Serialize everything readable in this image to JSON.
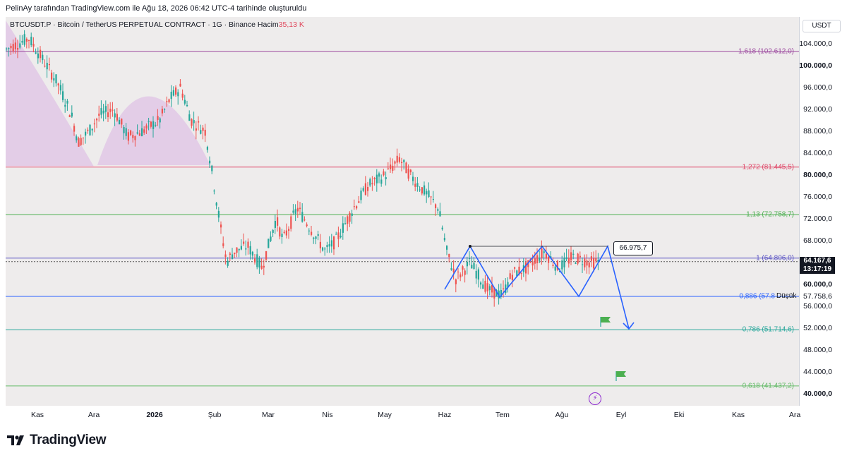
{
  "header": {
    "attribution": "PelinAy tarafından TradingView.com ile Ağu 18, 2026 06:42 UTC-4 tarihinde oluşturuldu"
  },
  "symbol": {
    "title": "BTCUSDT.P · Bitcoin / TetherUS PERPETUAL CONTRACT · 1G · Binance",
    "volume_label": "Hacim",
    "volume_value": "35,13 K"
  },
  "price_axis": {
    "currency": "USDT",
    "labels": [
      "104.000,0",
      "100.000,0",
      "96.000,0",
      "92.000,0",
      "88.000,0",
      "84.000,0",
      "80.000,0",
      "76.000,0",
      "72.000,0",
      "68.000,0",
      "60.000,0",
      "56.000,0",
      "52.000,0",
      "48.000,0",
      "44.000,0",
      "40.000,0"
    ],
    "current_price": "64.167,6",
    "countdown": "13:17:19",
    "low_value": "57.758,6",
    "low_label": "Düşük"
  },
  "time_axis": {
    "labels": [
      "Kas",
      "Ara",
      "2026",
      "Şub",
      "Mar",
      "Nis",
      "May",
      "Haz",
      "Tem",
      "Ağu",
      "Eyl",
      "Eki",
      "Kas",
      "Ara"
    ]
  },
  "fib_levels": [
    {
      "label": "1,618 (102.612,0)",
      "price": 102612.0,
      "color": "#9c4a9f"
    },
    {
      "label": "1,272 (81.445,5)",
      "price": 81445.5,
      "color": "#e04a6a"
    },
    {
      "label": "1,13 (72.758,7)",
      "price": 72758.7,
      "color": "#4caf50"
    },
    {
      "label": "1 (64.806,0)",
      "price": 64806.0,
      "color": "#5b54c4"
    },
    {
      "label": "0,886 (57.8",
      "price": 57800.0,
      "color": "#2962ff"
    },
    {
      "label": "0,786 (51.714,6)",
      "price": 51714.6,
      "color": "#26a69a"
    },
    {
      "label": "0,618 (41.437,2)",
      "price": 41437.2,
      "color": "#66bb6a"
    }
  ],
  "annotations": {
    "target": "66.975,7"
  },
  "branding": {
    "logo_text": "TradingView"
  },
  "colors": {
    "up": "#26a69a",
    "down": "#ef5350",
    "pattern_line": "#2962ff",
    "arc_fill": "#e1c8e6"
  }
}
